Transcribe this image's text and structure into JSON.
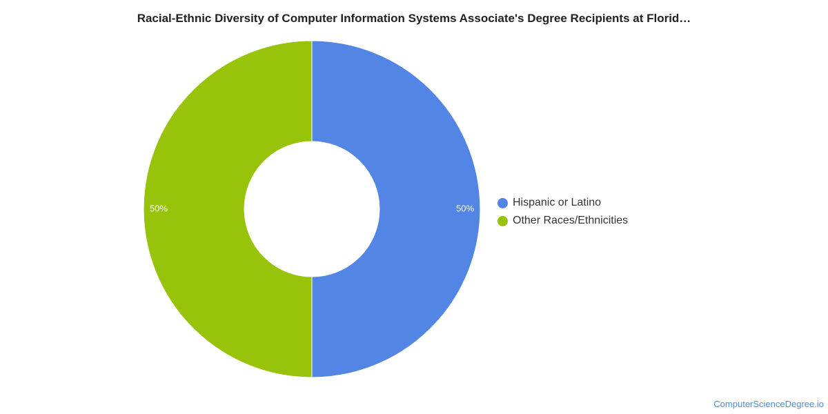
{
  "chart_data": {
    "type": "pie",
    "title": "Racial-Ethnic Diversity of Computer Information Systems Associate's Degree Recipients at Florid…",
    "categories": [
      "Hispanic or Latino",
      "Other Races/Ethnicities"
    ],
    "values": [
      50,
      50
    ],
    "data_labels": [
      "50%",
      "50%"
    ],
    "colors": [
      "#5386e4",
      "#97c40a"
    ],
    "donut": true,
    "legend_position": "right"
  },
  "watermark": "ComputerScienceDegree.io"
}
